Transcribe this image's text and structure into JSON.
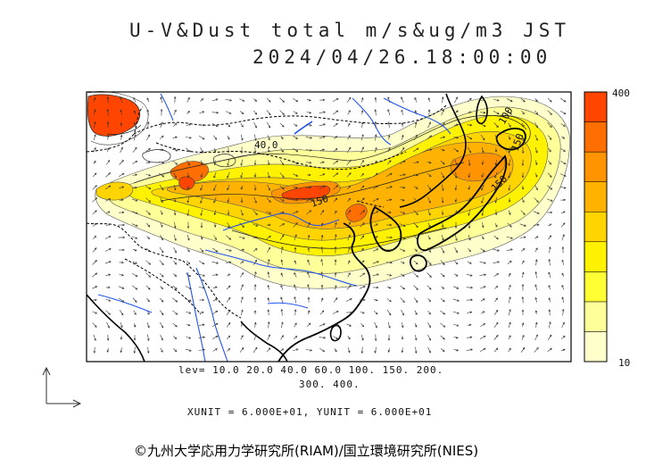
{
  "header": {
    "title": "U-V&Dust total m/s&ug/m3 JST",
    "timestamp": "2024/04/26.18:00:00"
  },
  "contour_labels": [
    "40.0",
    "150",
    "150",
    "150",
    "100"
  ],
  "legend": {
    "levels_line1": "lev= 10.0 20.0 40.0 60.0 100. 150. 200.",
    "levels_line2": "300. 400.",
    "units": "XUNIT = 6.000E+01, YUNIT = 6.000E+01"
  },
  "colorbar": {
    "max_label": "400",
    "min_label": "10",
    "levels": [
      10,
      20,
      40,
      60,
      100,
      150,
      200,
      300,
      400
    ],
    "colors": [
      "#ffffcc",
      "#ffff99",
      "#ffff33",
      "#fff200",
      "#ffd400",
      "#ffb300",
      "#ff9400",
      "#ff6e00",
      "#ff4500"
    ]
  },
  "credit": "©九州大学応用力学研究所(RIAM)/国立環境研究所(NIES)"
}
